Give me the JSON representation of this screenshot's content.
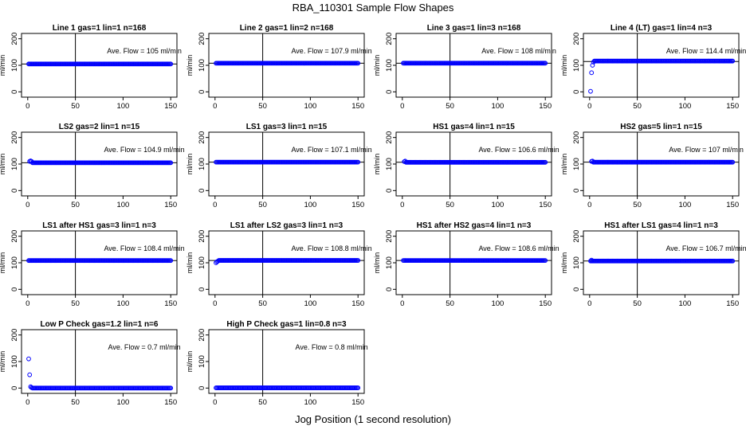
{
  "figure": {
    "title": "RBA_110301  Sample Flow Shapes",
    "xlabel": "Jog Position (1 second resolution)"
  },
  "colors": {
    "points": "#0000ff",
    "axis": "#000000",
    "background": "#ffffff"
  },
  "chart_data": [
    {
      "type": "scatter",
      "title": "Line 1 gas=1 lin=1 n=168",
      "annotation": "Ave. Flow =  105  ml/min",
      "ylabel": "ml/min",
      "xlim": [
        0,
        150
      ],
      "ylim": [
        -20,
        220
      ],
      "xticks": [
        0,
        50,
        100,
        150
      ],
      "yticks": [
        0,
        100,
        200
      ],
      "hline": 105,
      "vline": 50,
      "series": [
        {
          "name": "flow",
          "x_start": 1,
          "x_end": 150,
          "y": 105
        }
      ]
    },
    {
      "type": "scatter",
      "title": "Line 2 gas=1 lin=2 n=168",
      "annotation": "Ave. Flow =  107.9  ml/min",
      "ylabel": "ml/min",
      "xlim": [
        0,
        150
      ],
      "ylim": [
        -20,
        220
      ],
      "xticks": [
        0,
        50,
        100,
        150
      ],
      "yticks": [
        0,
        100,
        200
      ],
      "hline": 107.9,
      "vline": 50,
      "series": [
        {
          "name": "flow",
          "x_start": 1,
          "x_end": 150,
          "y": 107.9
        }
      ]
    },
    {
      "type": "scatter",
      "title": "Line 3 gas=1 lin=3 n=168",
      "annotation": "Ave. Flow =  108  ml/min",
      "ylabel": "ml/min",
      "xlim": [
        0,
        150
      ],
      "ylim": [
        -20,
        220
      ],
      "xticks": [
        0,
        50,
        100,
        150
      ],
      "yticks": [
        0,
        100,
        200
      ],
      "hline": 108,
      "vline": 50,
      "series": [
        {
          "name": "flow",
          "x_start": 1,
          "x_end": 150,
          "y": 108
        }
      ]
    },
    {
      "type": "scatter",
      "title": "Line 4 (LT) gas=1 lin=4 n=3",
      "annotation": "Ave. Flow =  114.4  ml/min",
      "ylabel": "ml/min",
      "xlim": [
        0,
        150
      ],
      "ylim": [
        -20,
        220
      ],
      "xticks": [
        0,
        50,
        100,
        150
      ],
      "yticks": [
        0,
        100,
        200
      ],
      "hline": 114.4,
      "vline": 50,
      "series": [
        {
          "name": "flow",
          "x_start": 5,
          "x_end": 150,
          "y": 116,
          "extra_points": [
            [
              1,
              2
            ],
            [
              2,
              72
            ],
            [
              3,
              100
            ],
            [
              4,
              112
            ]
          ]
        }
      ]
    },
    {
      "type": "scatter",
      "title": "LS2 gas=2 lin=1 n=15",
      "annotation": "Ave. Flow =  104.9  ml/min",
      "ylabel": "ml/min",
      "xlim": [
        0,
        150
      ],
      "ylim": [
        -20,
        220
      ],
      "xticks": [
        0,
        50,
        100,
        150
      ],
      "yticks": [
        0,
        100,
        200
      ],
      "hline": 104.9,
      "vline": 50,
      "series": [
        {
          "name": "flow",
          "x_start": 5,
          "x_end": 150,
          "y": 104.9,
          "extra_points": [
            [
              2,
              110
            ],
            [
              3,
              112
            ],
            [
              4,
              110
            ]
          ]
        }
      ]
    },
    {
      "type": "scatter",
      "title": "LS1 gas=3 lin=1 n=15",
      "annotation": "Ave. Flow =  107.1  ml/min",
      "ylabel": "ml/min",
      "xlim": [
        0,
        150
      ],
      "ylim": [
        -20,
        220
      ],
      "xticks": [
        0,
        50,
        100,
        150
      ],
      "yticks": [
        0,
        100,
        200
      ],
      "hline": 107.1,
      "vline": 50,
      "series": [
        {
          "name": "flow",
          "x_start": 1,
          "x_end": 150,
          "y": 107.1
        }
      ]
    },
    {
      "type": "scatter",
      "title": "HS1 gas=4 lin=1 n=15",
      "annotation": "Ave. Flow =  106.6  ml/min",
      "ylabel": "ml/min",
      "xlim": [
        0,
        150
      ],
      "ylim": [
        -20,
        220
      ],
      "xticks": [
        0,
        50,
        100,
        150
      ],
      "yticks": [
        0,
        100,
        200
      ],
      "hline": 106.6,
      "vline": 50,
      "series": [
        {
          "name": "flow",
          "x_start": 4,
          "x_end": 150,
          "y": 106.6,
          "extra_points": [
            [
              2,
              109
            ],
            [
              3,
              111
            ]
          ]
        }
      ]
    },
    {
      "type": "scatter",
      "title": "HS2 gas=5 lin=1 n=15",
      "annotation": "Ave. Flow =  107  ml/min",
      "ylabel": "ml/min",
      "xlim": [
        0,
        150
      ],
      "ylim": [
        -20,
        220
      ],
      "xticks": [
        0,
        50,
        100,
        150
      ],
      "yticks": [
        0,
        100,
        200
      ],
      "hline": 107,
      "vline": 50,
      "series": [
        {
          "name": "flow",
          "x_start": 4,
          "x_end": 150,
          "y": 107,
          "extra_points": [
            [
              2,
              110
            ],
            [
              3,
              111
            ]
          ]
        }
      ]
    },
    {
      "type": "scatter",
      "title": "LS1 after HS1 gas=3 lin=1 n=3",
      "annotation": "Ave. Flow =  108.4  ml/min",
      "ylabel": "ml/min",
      "xlim": [
        0,
        150
      ],
      "ylim": [
        -20,
        220
      ],
      "xticks": [
        0,
        50,
        100,
        150
      ],
      "yticks": [
        0,
        100,
        200
      ],
      "hline": 108.4,
      "vline": 50,
      "series": [
        {
          "name": "flow",
          "x_start": 1,
          "x_end": 150,
          "y": 108.4
        }
      ]
    },
    {
      "type": "scatter",
      "title": "LS1 after LS2 gas=3 lin=1 n=3",
      "annotation": "Ave. Flow =  108.8  ml/min",
      "ylabel": "ml/min",
      "xlim": [
        0,
        150
      ],
      "ylim": [
        -20,
        220
      ],
      "xticks": [
        0,
        50,
        100,
        150
      ],
      "yticks": [
        0,
        100,
        200
      ],
      "hline": 108.8,
      "vline": 50,
      "series": [
        {
          "name": "flow",
          "x_start": 4,
          "x_end": 150,
          "y": 108.8,
          "extra_points": [
            [
              1,
              100
            ],
            [
              2,
              104
            ],
            [
              3,
              106
            ]
          ]
        }
      ]
    },
    {
      "type": "scatter",
      "title": "HS1 after HS2 gas=4 lin=1 n=3",
      "annotation": "Ave. Flow =  108.6  ml/min",
      "ylabel": "ml/min",
      "xlim": [
        0,
        150
      ],
      "ylim": [
        -20,
        220
      ],
      "xticks": [
        0,
        50,
        100,
        150
      ],
      "yticks": [
        0,
        100,
        200
      ],
      "hline": 108.6,
      "vline": 50,
      "series": [
        {
          "name": "flow",
          "x_start": 1,
          "x_end": 150,
          "y": 108.6
        }
      ]
    },
    {
      "type": "scatter",
      "title": "HS1 after LS1 gas=4 lin=1 n=3",
      "annotation": "Ave. Flow =  106.7  ml/min",
      "ylabel": "ml/min",
      "xlim": [
        0,
        150
      ],
      "ylim": [
        -20,
        220
      ],
      "xticks": [
        0,
        50,
        100,
        150
      ],
      "yticks": [
        0,
        100,
        200
      ],
      "hline": 106.7,
      "vline": 50,
      "series": [
        {
          "name": "flow",
          "x_start": 1,
          "x_end": 150,
          "y": 106.7,
          "extra_points": [
            [
              2,
              110
            ]
          ]
        }
      ]
    },
    {
      "type": "scatter",
      "title": "Low P Check gas=1.2 lin=1 n=6",
      "annotation": "Ave. Flow =  0.7  ml/min",
      "ylabel": "ml/min",
      "xlim": [
        0,
        150
      ],
      "ylim": [
        -20,
        220
      ],
      "xticks": [
        0,
        50,
        100,
        150
      ],
      "yticks": [
        0,
        100,
        200
      ],
      "hline": null,
      "vline": 50,
      "series": [
        {
          "name": "flow",
          "x_start": 5,
          "x_end": 150,
          "y": 0,
          "extra_points": [
            [
              1,
              110
            ],
            [
              2,
              50
            ],
            [
              3,
              5
            ],
            [
              4,
              2
            ]
          ]
        }
      ]
    },
    {
      "type": "scatter",
      "title": "High P Check gas=1 lin=0.8 n=3",
      "annotation": "Ave. Flow =  0.8  ml/min",
      "ylabel": "ml/min",
      "xlim": [
        0,
        150
      ],
      "ylim": [
        -20,
        220
      ],
      "xticks": [
        0,
        50,
        100,
        150
      ],
      "yticks": [
        0,
        100,
        200
      ],
      "hline": null,
      "vline": 50,
      "series": [
        {
          "name": "flow",
          "x_start": 1,
          "x_end": 150,
          "y": 0.8
        }
      ]
    }
  ]
}
